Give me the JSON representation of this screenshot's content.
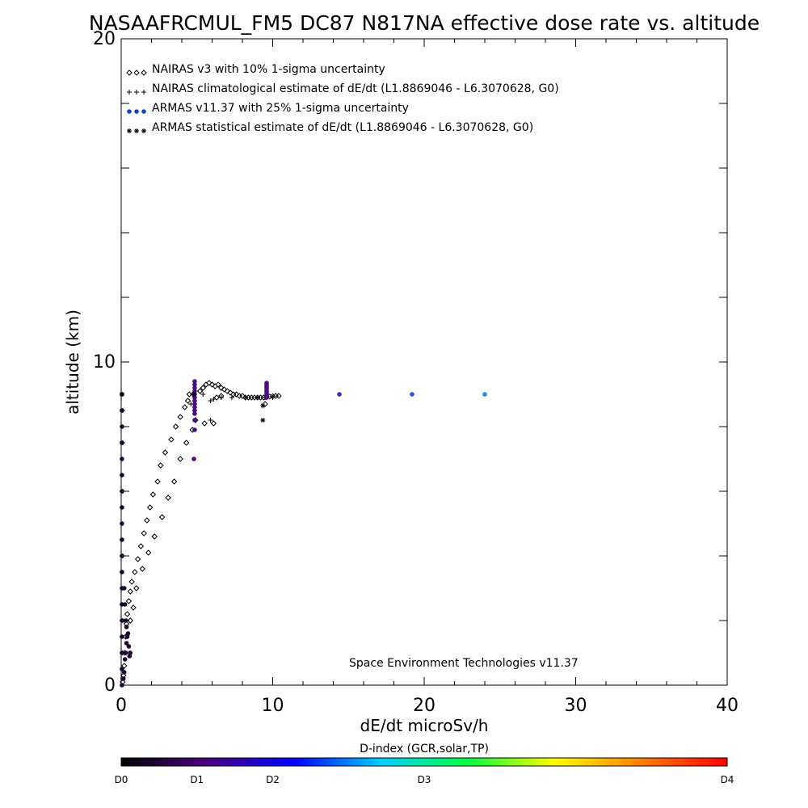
{
  "chart_data": {
    "type": "scatter",
    "title": "NASAAFRCMUL_FM5 DC87 N817NA effective dose rate vs. altitude",
    "xlabel": "dE/dt microSv/h",
    "ylabel": "altitude (km)",
    "xlim": [
      0,
      40
    ],
    "ylim": [
      0,
      20
    ],
    "x_ticks": [
      {
        "value": 0,
        "label": "0"
      },
      {
        "value": 10,
        "label": "10"
      },
      {
        "value": 20,
        "label": "20"
      },
      {
        "value": 30,
        "label": "30"
      },
      {
        "value": 40,
        "label": "40"
      }
    ],
    "y_ticks": [
      {
        "value": 0,
        "label": "0"
      },
      {
        "value": 10,
        "label": "10"
      },
      {
        "value": 20,
        "label": "20"
      }
    ],
    "grid": false,
    "legend_position": "top-left",
    "legend": [
      {
        "marker": "diamond",
        "symbol": "◇◇◇",
        "text": "NAIRAS v3 with 10% 1-sigma uncertainty",
        "color": "#000000"
      },
      {
        "marker": "plus",
        "symbol": "+++",
        "text": "NAIRAS climatological estimate of dE/dt (L1.8869046 - L6.3070628, G0)",
        "color": "#000000"
      },
      {
        "marker": "dot",
        "symbol": "●●●",
        "text": "ARMAS v11.37 with 25% 1-sigma uncertainty",
        "color": "#1a3fd0"
      },
      {
        "marker": "asterisk",
        "symbol": "✱✱✱",
        "text": "ARMAS statistical estimate of dE/dt (L1.8869046 - L6.3070628, G0)",
        "color": "#000000"
      }
    ],
    "annotation": "Space Environment Technologies v11.37",
    "series": [
      {
        "marker": "diamond",
        "color": "#000000",
        "points": [
          [
            0.1,
            0.1
          ],
          [
            0.15,
            0.3
          ],
          [
            0.2,
            0.6
          ],
          [
            0.25,
            1.0
          ],
          [
            0.3,
            1.5
          ],
          [
            0.35,
            1.9
          ],
          [
            0.4,
            2.2
          ],
          [
            0.5,
            2.6
          ],
          [
            0.6,
            2.9
          ],
          [
            0.7,
            3.2
          ],
          [
            0.9,
            3.5
          ],
          [
            1.1,
            3.9
          ],
          [
            1.3,
            4.3
          ],
          [
            1.5,
            4.7
          ],
          [
            1.7,
            5.1
          ],
          [
            1.9,
            5.5
          ],
          [
            2.1,
            5.9
          ],
          [
            2.4,
            6.3
          ],
          [
            2.6,
            6.8
          ],
          [
            2.9,
            7.2
          ],
          [
            3.3,
            7.6
          ],
          [
            3.6,
            8.0
          ],
          [
            3.9,
            8.3
          ],
          [
            4.2,
            8.6
          ],
          [
            4.4,
            8.8
          ],
          [
            4.5,
            9.0
          ],
          [
            0.6,
            2.0
          ],
          [
            0.8,
            2.4
          ],
          [
            1.0,
            3.0
          ],
          [
            1.4,
            3.6
          ],
          [
            1.8,
            4.1
          ],
          [
            2.2,
            4.6
          ],
          [
            2.7,
            5.2
          ],
          [
            3.1,
            5.8
          ],
          [
            3.5,
            6.3
          ],
          [
            3.9,
            7.0
          ],
          [
            4.3,
            7.5
          ],
          [
            4.7,
            7.9
          ],
          [
            4.9,
            8.2
          ],
          [
            5.5,
            8.1
          ],
          [
            6.1,
            8.1
          ],
          [
            6.3,
            8.9
          ],
          [
            6.6,
            8.95
          ],
          [
            9.5,
            8.7
          ],
          [
            5.2,
            9.1
          ],
          [
            5.4,
            9.2
          ],
          [
            5.6,
            9.3
          ],
          [
            5.8,
            9.35
          ],
          [
            6.0,
            9.3
          ],
          [
            6.2,
            9.25
          ],
          [
            6.4,
            9.3
          ],
          [
            6.6,
            9.2
          ],
          [
            6.8,
            9.15
          ],
          [
            7.0,
            9.1
          ],
          [
            7.2,
            9.05
          ],
          [
            7.4,
            9.0
          ],
          [
            7.6,
            9.0
          ],
          [
            7.8,
            8.95
          ],
          [
            8.0,
            8.95
          ],
          [
            8.2,
            8.9
          ],
          [
            8.4,
            8.9
          ],
          [
            8.6,
            8.9
          ],
          [
            8.8,
            8.9
          ],
          [
            9.0,
            8.9
          ],
          [
            9.2,
            8.9
          ],
          [
            9.4,
            8.9
          ],
          [
            9.6,
            8.92
          ],
          [
            9.8,
            8.93
          ],
          [
            10.0,
            8.94
          ],
          [
            10.2,
            8.95
          ],
          [
            10.4,
            8.95
          ]
        ]
      },
      {
        "marker": "plus",
        "color": "#000000",
        "points": [
          [
            0.1,
            0.2
          ],
          [
            0.1,
            1.0
          ],
          [
            0.1,
            2.0
          ],
          [
            0.1,
            4.0
          ],
          [
            0.1,
            6.0
          ],
          [
            0.1,
            7.5
          ],
          [
            0.1,
            8.5
          ],
          [
            4.6,
            8.7
          ],
          [
            4.7,
            9.0
          ],
          [
            5.4,
            9.0
          ],
          [
            5.9,
            8.8
          ],
          [
            6.1,
            8.85
          ],
          [
            5.9,
            8.2
          ],
          [
            6.6,
            8.9
          ],
          [
            7.3,
            8.9
          ],
          [
            8.2,
            8.9
          ],
          [
            9.0,
            8.9
          ],
          [
            9.5,
            8.9
          ],
          [
            10.0,
            8.9
          ]
        ]
      },
      {
        "marker": "dot",
        "color": "#1a0a30",
        "points": [
          [
            0.05,
            0.0
          ],
          [
            0.05,
            0.5
          ],
          [
            0.05,
            1.0
          ],
          [
            0.05,
            1.5
          ],
          [
            0.05,
            2.0
          ],
          [
            0.05,
            2.5
          ],
          [
            0.05,
            3.0
          ],
          [
            0.05,
            3.5
          ],
          [
            0.05,
            4.0
          ],
          [
            0.05,
            4.5
          ],
          [
            0.05,
            5.0
          ],
          [
            0.05,
            5.5
          ],
          [
            0.05,
            6.0
          ],
          [
            0.05,
            6.5
          ],
          [
            0.05,
            7.0
          ],
          [
            0.05,
            7.5
          ],
          [
            0.05,
            8.0
          ],
          [
            0.05,
            8.5
          ],
          [
            0.05,
            9.0
          ],
          [
            0.15,
            0.2
          ],
          [
            0.2,
            0.4
          ],
          [
            0.25,
            0.8
          ],
          [
            0.3,
            1.0
          ],
          [
            0.35,
            1.3
          ],
          [
            0.4,
            1.5
          ],
          [
            0.45,
            1.6
          ],
          [
            0.5,
            1.2
          ],
          [
            0.55,
            0.9
          ],
          [
            0.6,
            1.0
          ],
          [
            0.35,
            1.8
          ],
          [
            0.3,
            2.0
          ],
          [
            0.25,
            2.5
          ],
          [
            0.2,
            3.0
          ]
        ]
      },
      {
        "marker": "dot",
        "color": "#4a0c80",
        "points": [
          [
            4.8,
            7.0
          ],
          [
            4.85,
            7.9
          ],
          [
            4.85,
            8.2
          ],
          [
            4.85,
            8.4
          ],
          [
            4.85,
            8.5
          ],
          [
            4.85,
            8.6
          ],
          [
            4.85,
            8.7
          ],
          [
            4.85,
            8.8
          ],
          [
            4.85,
            8.9
          ],
          [
            4.85,
            9.0
          ],
          [
            4.85,
            9.1
          ],
          [
            4.85,
            9.2
          ],
          [
            4.85,
            9.3
          ],
          [
            4.85,
            9.4
          ],
          [
            9.6,
            8.9
          ],
          [
            9.6,
            8.95
          ],
          [
            9.6,
            9.0
          ],
          [
            9.6,
            9.05
          ],
          [
            9.6,
            9.1
          ],
          [
            9.6,
            9.15
          ],
          [
            9.6,
            9.2
          ],
          [
            9.6,
            9.25
          ],
          [
            9.6,
            9.3
          ],
          [
            9.6,
            9.35
          ]
        ]
      },
      {
        "marker": "dot",
        "color": "#3a2cc0",
        "points": [
          [
            14.4,
            9.0
          ]
        ]
      },
      {
        "marker": "dot",
        "color": "#2a50e0",
        "points": [
          [
            19.2,
            9.0
          ]
        ]
      },
      {
        "marker": "dot",
        "color": "#1e8ce6",
        "points": [
          [
            24.0,
            9.0
          ]
        ]
      },
      {
        "marker": "asterisk",
        "color": "#000000",
        "points": [
          [
            0.05,
            9.0
          ],
          [
            9.35,
            8.2
          ],
          [
            9.35,
            8.65
          ],
          [
            4.8,
            9.0
          ]
        ]
      }
    ]
  },
  "colorbar": {
    "title": "D-index (GCR,solar,TP)",
    "stops": [
      "#000000",
      "#4b0082",
      "#0000ff",
      "#00d0ff",
      "#00ff40",
      "#ffff00",
      "#ff8000",
      "#ff0000"
    ],
    "labels": [
      {
        "value": 0,
        "label": "D0"
      },
      {
        "value": 1,
        "label": "D1"
      },
      {
        "value": 2,
        "label": "D2"
      },
      {
        "value": 4,
        "label": "D3"
      },
      {
        "value": 8,
        "label": "D4"
      }
    ],
    "range": [
      0,
      8
    ]
  }
}
